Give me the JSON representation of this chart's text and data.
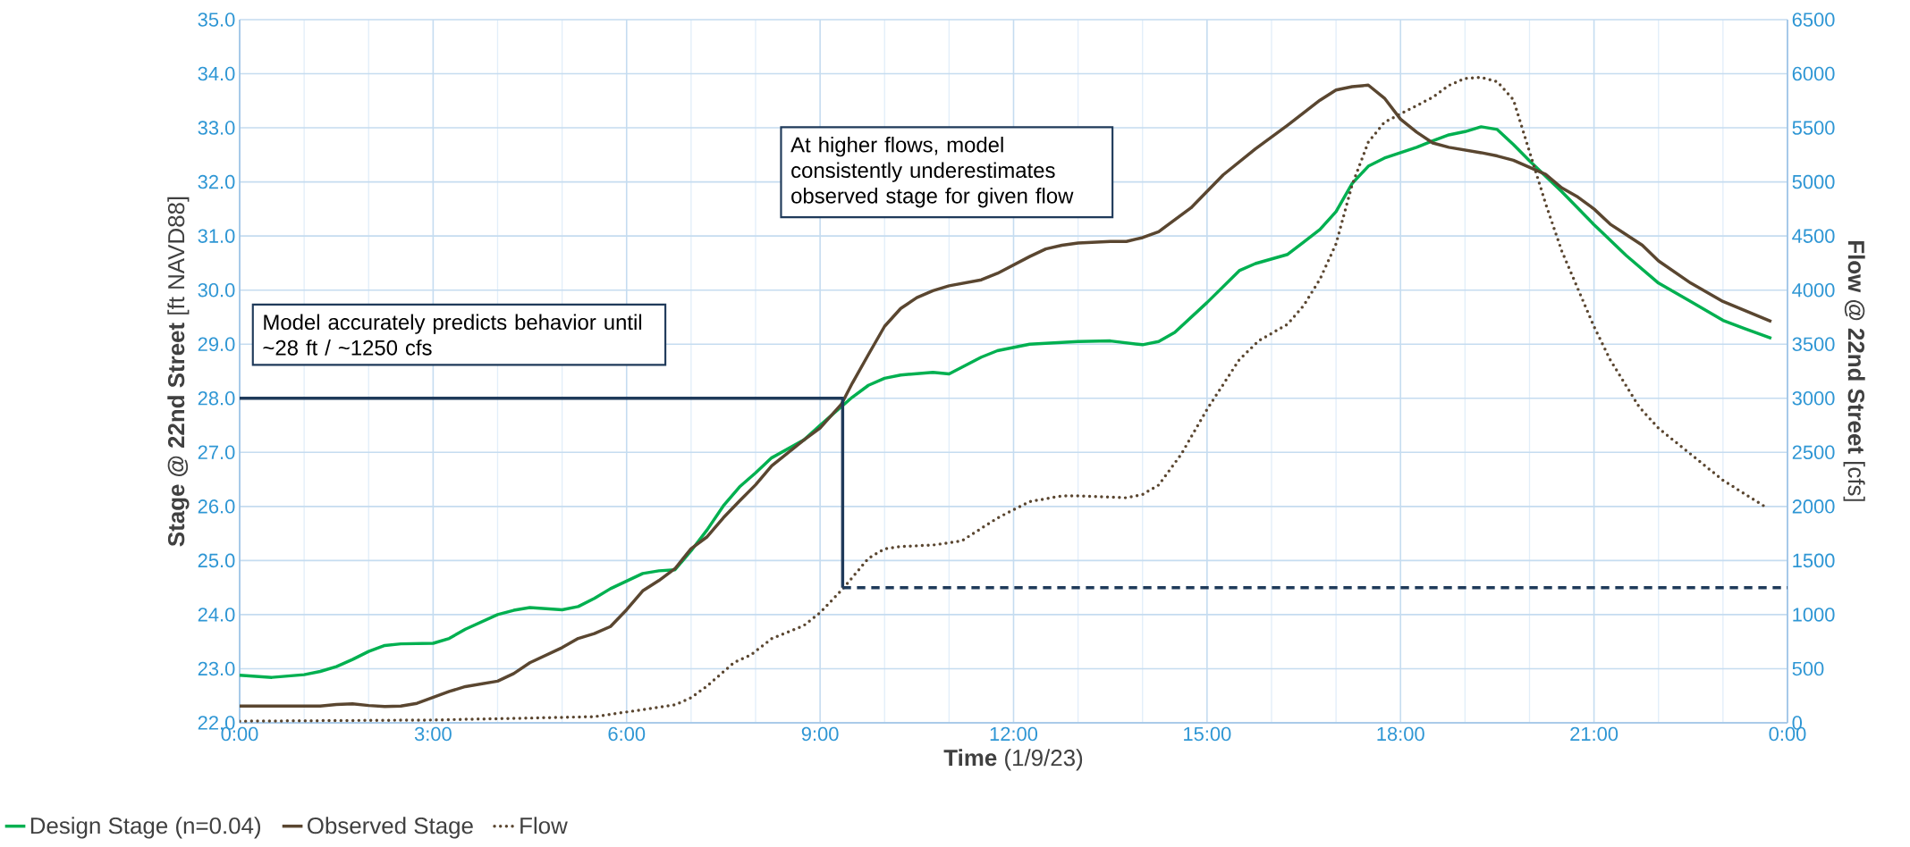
{
  "chart_data": {
    "type": "line",
    "xlabel": "**Time** (1/9/23)",
    "ylabel": "**Stage @ 22nd Street** [ft NAVD88]",
    "y2label": "**Flow @ 22nd Street** [cfs]",
    "xlim": [
      0,
      24
    ],
    "ylim": [
      22,
      35
    ],
    "y2lim": [
      0,
      6500
    ],
    "xticks": [
      {
        "value": 0,
        "label": "0:00"
      },
      {
        "value": 3,
        "label": "3:00"
      },
      {
        "value": 6,
        "label": "6:00"
      },
      {
        "value": 9,
        "label": "9:00"
      },
      {
        "value": 12,
        "label": "12:00"
      },
      {
        "value": 15,
        "label": "15:00"
      },
      {
        "value": 18,
        "label": "18:00"
      },
      {
        "value": 21,
        "label": "21:00"
      },
      {
        "value": 24,
        "label": "0:00"
      }
    ],
    "yticks": [
      {
        "value": 22,
        "label": "22.0"
      },
      {
        "value": 23,
        "label": "23.0"
      },
      {
        "value": 24,
        "label": "24.0"
      },
      {
        "value": 25,
        "label": "25.0"
      },
      {
        "value": 26,
        "label": "26.0"
      },
      {
        "value": 27,
        "label": "27.0"
      },
      {
        "value": 28,
        "label": "28.0"
      },
      {
        "value": 29,
        "label": "29.0"
      },
      {
        "value": 30,
        "label": "30.0"
      },
      {
        "value": 31,
        "label": "31.0"
      },
      {
        "value": 32,
        "label": "32.0"
      },
      {
        "value": 33,
        "label": "33.0"
      },
      {
        "value": 34,
        "label": "34.0"
      },
      {
        "value": 35,
        "label": "35.0"
      }
    ],
    "y2ticks": [
      0,
      500,
      1000,
      1500,
      2000,
      2500,
      3000,
      3500,
      4000,
      4500,
      5000,
      5500,
      6000,
      6500
    ],
    "grid": true,
    "legend": "bottom",
    "marker": "none",
    "annotations": [
      "Model accurately predicts behavior until ~28 ft / ~1250 cfs",
      "At higher flows, model consistently underestimates observed stage for given flow"
    ],
    "series": [
      {
        "name": "Design Stage (n=0.04)",
        "color": "#00b050",
        "line_style": "solid",
        "x": [
          0,
          0.5,
          1.0,
          1.25,
          1.5,
          1.75,
          2.0,
          2.25,
          2.5,
          3.0,
          3.25,
          3.5,
          4.0,
          4.25,
          4.5,
          5.0,
          5.25,
          5.5,
          5.75,
          6.25,
          6.5,
          6.75,
          7.0,
          7.25,
          7.5,
          7.75,
          8.0,
          8.25,
          8.75,
          9.0,
          9.5,
          9.75,
          10.0,
          10.25,
          10.75,
          11.0,
          11.5,
          11.75,
          12.25,
          13.0,
          13.5,
          14.0,
          14.25,
          14.5,
          15.0,
          15.5,
          15.75,
          16.25,
          16.5,
          16.75,
          17.0,
          17.25,
          17.5,
          17.75,
          18.25,
          18.5,
          18.75,
          19.0,
          19.25,
          19.5,
          19.75,
          20.0,
          20.5,
          21.0,
          21.5,
          22.0,
          22.5,
          23.0,
          23.33,
          23.75
        ],
        "values": [
          22.88,
          22.84,
          22.89,
          22.95,
          23.04,
          23.17,
          23.32,
          23.43,
          23.46,
          23.47,
          23.56,
          23.73,
          24.0,
          24.08,
          24.13,
          24.09,
          24.15,
          24.3,
          24.48,
          24.76,
          24.81,
          24.83,
          25.18,
          25.57,
          26.01,
          26.36,
          26.62,
          26.9,
          27.23,
          27.5,
          28.02,
          28.24,
          28.37,
          28.43,
          28.48,
          28.45,
          28.76,
          28.88,
          29.0,
          29.05,
          29.06,
          28.99,
          29.05,
          29.22,
          29.77,
          30.36,
          30.49,
          30.66,
          30.89,
          31.12,
          31.45,
          31.97,
          32.29,
          32.44,
          32.64,
          32.76,
          32.87,
          32.93,
          33.02,
          32.97,
          32.69,
          32.39,
          31.82,
          31.21,
          30.64,
          30.13,
          29.79,
          29.44,
          29.29,
          29.11
        ]
      },
      {
        "name": "Observed Stage",
        "color": "#5a4630",
        "line_style": "solid",
        "x": [
          0,
          1.25,
          1.5,
          1.75,
          2.0,
          2.25,
          2.5,
          2.75,
          3.0,
          3.25,
          3.5,
          4.0,
          4.25,
          4.5,
          5.0,
          5.25,
          5.5,
          5.75,
          6.0,
          6.25,
          6.5,
          6.75,
          7.0,
          7.25,
          7.5,
          7.75,
          8.0,
          8.25,
          8.75,
          9.0,
          9.33,
          9.5,
          9.75,
          10.0,
          10.25,
          10.5,
          10.75,
          11.0,
          11.5,
          11.75,
          12.25,
          12.5,
          12.75,
          13.0,
          13.5,
          13.75,
          14.0,
          14.25,
          14.75,
          15.25,
          15.75,
          16.25,
          16.5,
          16.75,
          17.0,
          17.25,
          17.5,
          17.75,
          18.0,
          18.25,
          18.5,
          18.75,
          19.0,
          19.25,
          19.5,
          19.75,
          20.0,
          20.25,
          20.5,
          20.75,
          21.0,
          21.25,
          21.75,
          22.0,
          22.5,
          23.0,
          23.75
        ],
        "values": [
          22.31,
          22.31,
          22.34,
          22.35,
          22.32,
          22.3,
          22.31,
          22.36,
          22.47,
          22.58,
          22.67,
          22.77,
          22.91,
          23.11,
          23.39,
          23.56,
          23.65,
          23.78,
          24.09,
          24.44,
          24.63,
          24.85,
          25.22,
          25.44,
          25.79,
          26.1,
          26.4,
          26.75,
          27.23,
          27.45,
          27.89,
          28.28,
          28.81,
          29.33,
          29.66,
          29.86,
          29.99,
          30.08,
          30.19,
          30.31,
          30.62,
          30.76,
          30.83,
          30.87,
          30.9,
          30.9,
          30.97,
          31.08,
          31.52,
          32.13,
          32.61,
          33.05,
          33.28,
          33.51,
          33.7,
          33.76,
          33.79,
          33.55,
          33.16,
          32.92,
          32.72,
          32.64,
          32.59,
          32.54,
          32.48,
          32.4,
          32.27,
          32.14,
          31.89,
          31.72,
          31.5,
          31.22,
          30.83,
          30.54,
          30.13,
          29.79,
          29.42
        ]
      },
      {
        "name": "Flow",
        "color": "#5a4630",
        "line_style": "dotted",
        "axis": "y2",
        "x": [
          0,
          3.0,
          4.5,
          5.5,
          6.0,
          6.75,
          7.0,
          7.25,
          7.67,
          7.92,
          8.25,
          8.75,
          9.0,
          9.35,
          9.75,
          10.0,
          10.25,
          10.75,
          11.2,
          11.75,
          12.25,
          12.75,
          13.0,
          13.75,
          14.0,
          14.25,
          14.6,
          15.0,
          15.5,
          15.8,
          16.25,
          16.5,
          16.75,
          17.0,
          17.25,
          17.5,
          17.75,
          18.0,
          18.5,
          18.75,
          19.0,
          19.25,
          19.5,
          19.75,
          20.0,
          20.25,
          20.5,
          20.75,
          21.0,
          21.25,
          21.7,
          22.0,
          22.5,
          23.0,
          23.7
        ],
        "values": [
          15,
          26,
          44,
          57,
          100,
          166,
          232,
          341,
          559,
          625,
          778,
          900,
          1018,
          1237,
          1521,
          1608,
          1630,
          1643,
          1683,
          1893,
          2045,
          2098,
          2098,
          2080,
          2111,
          2198,
          2483,
          2898,
          3357,
          3531,
          3685,
          3859,
          4100,
          4427,
          4974,
          5367,
          5551,
          5629,
          5782,
          5892,
          5957,
          5966,
          5927,
          5760,
          5280,
          4799,
          4362,
          4012,
          3663,
          3357,
          2920,
          2723,
          2483,
          2242,
          1980
        ]
      },
      {
        "color": "#1f3a5a",
        "line_style": "solid",
        "x": [
          0,
          9.35,
          9.35
        ],
        "values": [
          28,
          28,
          24.5
        ]
      },
      {
        "color": "#1f3a5a",
        "line_style": "dashed",
        "axis": "y2",
        "x": [
          9.35,
          24
        ],
        "values": [
          1250,
          1250
        ]
      }
    ]
  }
}
